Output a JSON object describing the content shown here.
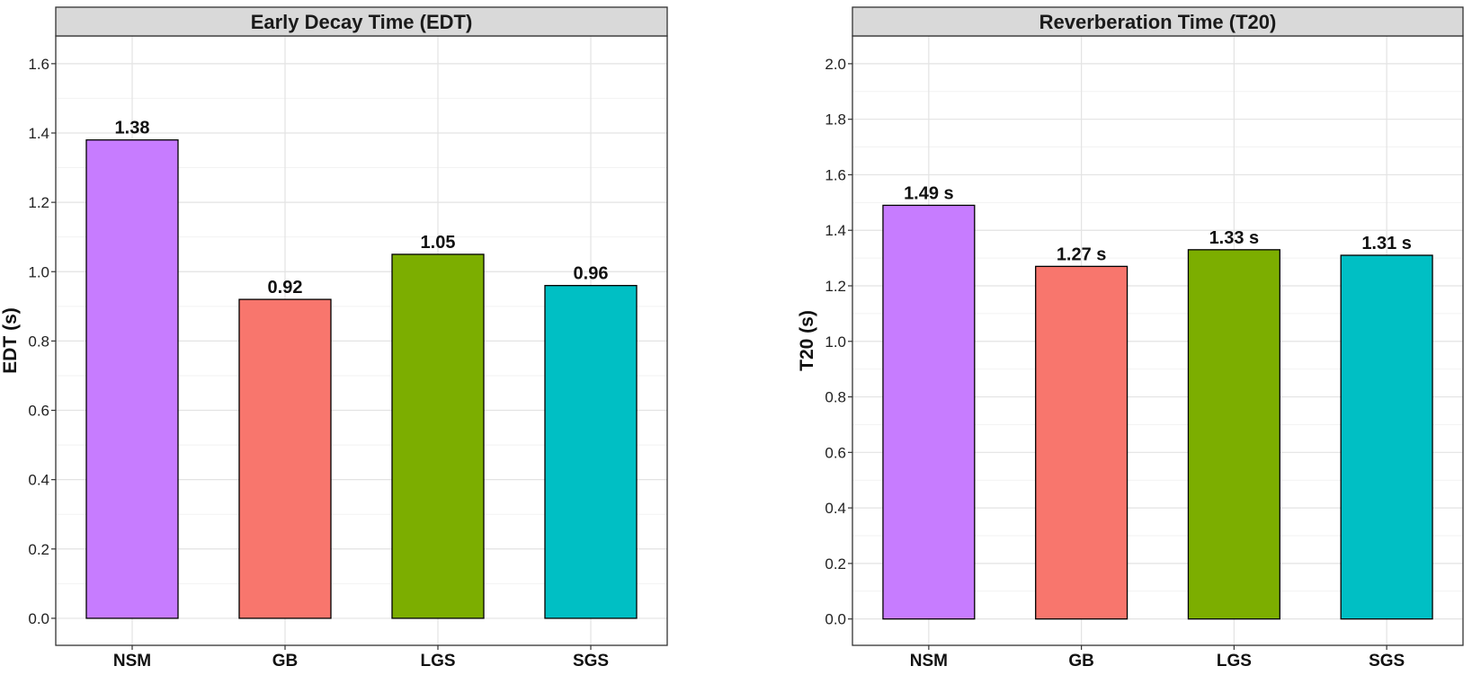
{
  "chart_data": [
    {
      "type": "bar",
      "title": "Early Decay Time (EDT)",
      "xlabel": "",
      "ylabel": "EDT (s)",
      "categories": [
        "NSM",
        "GB",
        "LGS",
        "SGS"
      ],
      "values": [
        1.38,
        0.92,
        1.05,
        0.96
      ],
      "value_labels": [
        "1.38",
        "0.92",
        "1.05",
        "0.96"
      ],
      "colors": [
        "#C77CFF",
        "#F8766D",
        "#7CAE00",
        "#00BFC4"
      ],
      "ylim": [
        -0.078,
        1.68
      ],
      "yticks": [
        0.0,
        0.2,
        0.4,
        0.6,
        0.8,
        1.0,
        1.2,
        1.4,
        1.6
      ],
      "ytick_labels": [
        "0.0",
        "0.2",
        "0.4",
        "0.6",
        "0.8",
        "1.0",
        "1.2",
        "1.4",
        "1.6"
      ],
      "grid": true,
      "legend": "none"
    },
    {
      "type": "bar",
      "title": "Reverberation Time (T20)",
      "xlabel": "",
      "ylabel": "T20 (s)",
      "categories": [
        "NSM",
        "GB",
        "LGS",
        "SGS"
      ],
      "values": [
        1.49,
        1.27,
        1.33,
        1.31
      ],
      "value_labels": [
        "1.49 s",
        "1.27 s",
        "1.33 s",
        "1.31 s"
      ],
      "colors": [
        "#C77CFF",
        "#F8766D",
        "#7CAE00",
        "#00BFC4"
      ],
      "ylim": [
        -0.095,
        2.1
      ],
      "yticks": [
        0.0,
        0.2,
        0.4,
        0.6,
        0.8,
        1.0,
        1.2,
        1.4,
        1.6,
        1.8,
        2.0
      ],
      "ytick_labels": [
        "0.0",
        "0.2",
        "0.4",
        "0.6",
        "0.8",
        "1.0",
        "1.2",
        "1.4",
        "1.6",
        "1.8",
        "2.0"
      ],
      "grid": true,
      "legend": "none"
    }
  ]
}
